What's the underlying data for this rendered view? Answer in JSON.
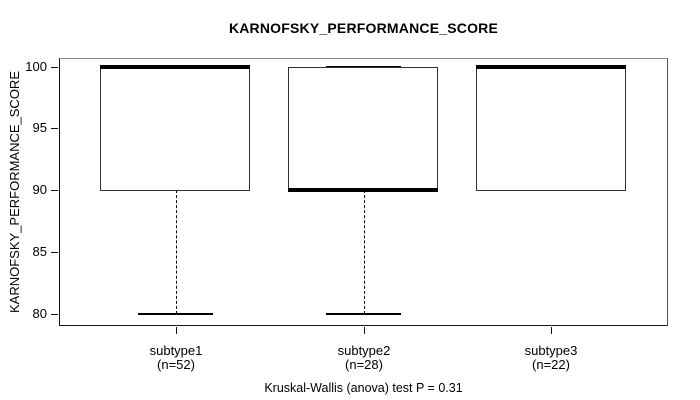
{
  "title": "KARNOFSKY_PERFORMANCE_SCORE",
  "colors": {
    "line": "#000000",
    "box_border": "#303030",
    "frame_top": "#8a8a8a",
    "frame_side": "#4f4f4f",
    "frame_bottom": "#151515",
    "background": "#ffffff",
    "text": "#000000"
  },
  "chart_data": {
    "type": "box",
    "title": "KARNOFSKY_PERFORMANCE_SCORE",
    "xlabel": "",
    "ylabel": "KARNOFSKY_PERFORMANCE_SCORE",
    "annotation": "Kruskal-Wallis (anova) test P = 0.31",
    "y_ticks": [
      80,
      85,
      90,
      95,
      100
    ],
    "ylim": [
      79.0,
      100.7
    ],
    "xlim": [
      0.38,
      3.62
    ],
    "box_width": 0.8,
    "staple_width": 0.4,
    "grid": false,
    "legend": null,
    "groups": [
      {
        "x": 1,
        "label": "subtype1",
        "sublabel": "(n=52)",
        "n": 52,
        "whisker_low": 80,
        "q1": 90,
        "median": 100,
        "q3": 100,
        "whisker_high": 100
      },
      {
        "x": 2,
        "label": "subtype2",
        "sublabel": "(n=28)",
        "n": 28,
        "whisker_low": 80,
        "q1": 90,
        "median": 90,
        "q3": 100,
        "whisker_high": 100
      },
      {
        "x": 3,
        "label": "subtype3",
        "sublabel": "(n=22)",
        "n": 22,
        "whisker_low": 90,
        "q1": 90,
        "median": 100,
        "q3": 100,
        "whisker_high": 100
      }
    ]
  }
}
